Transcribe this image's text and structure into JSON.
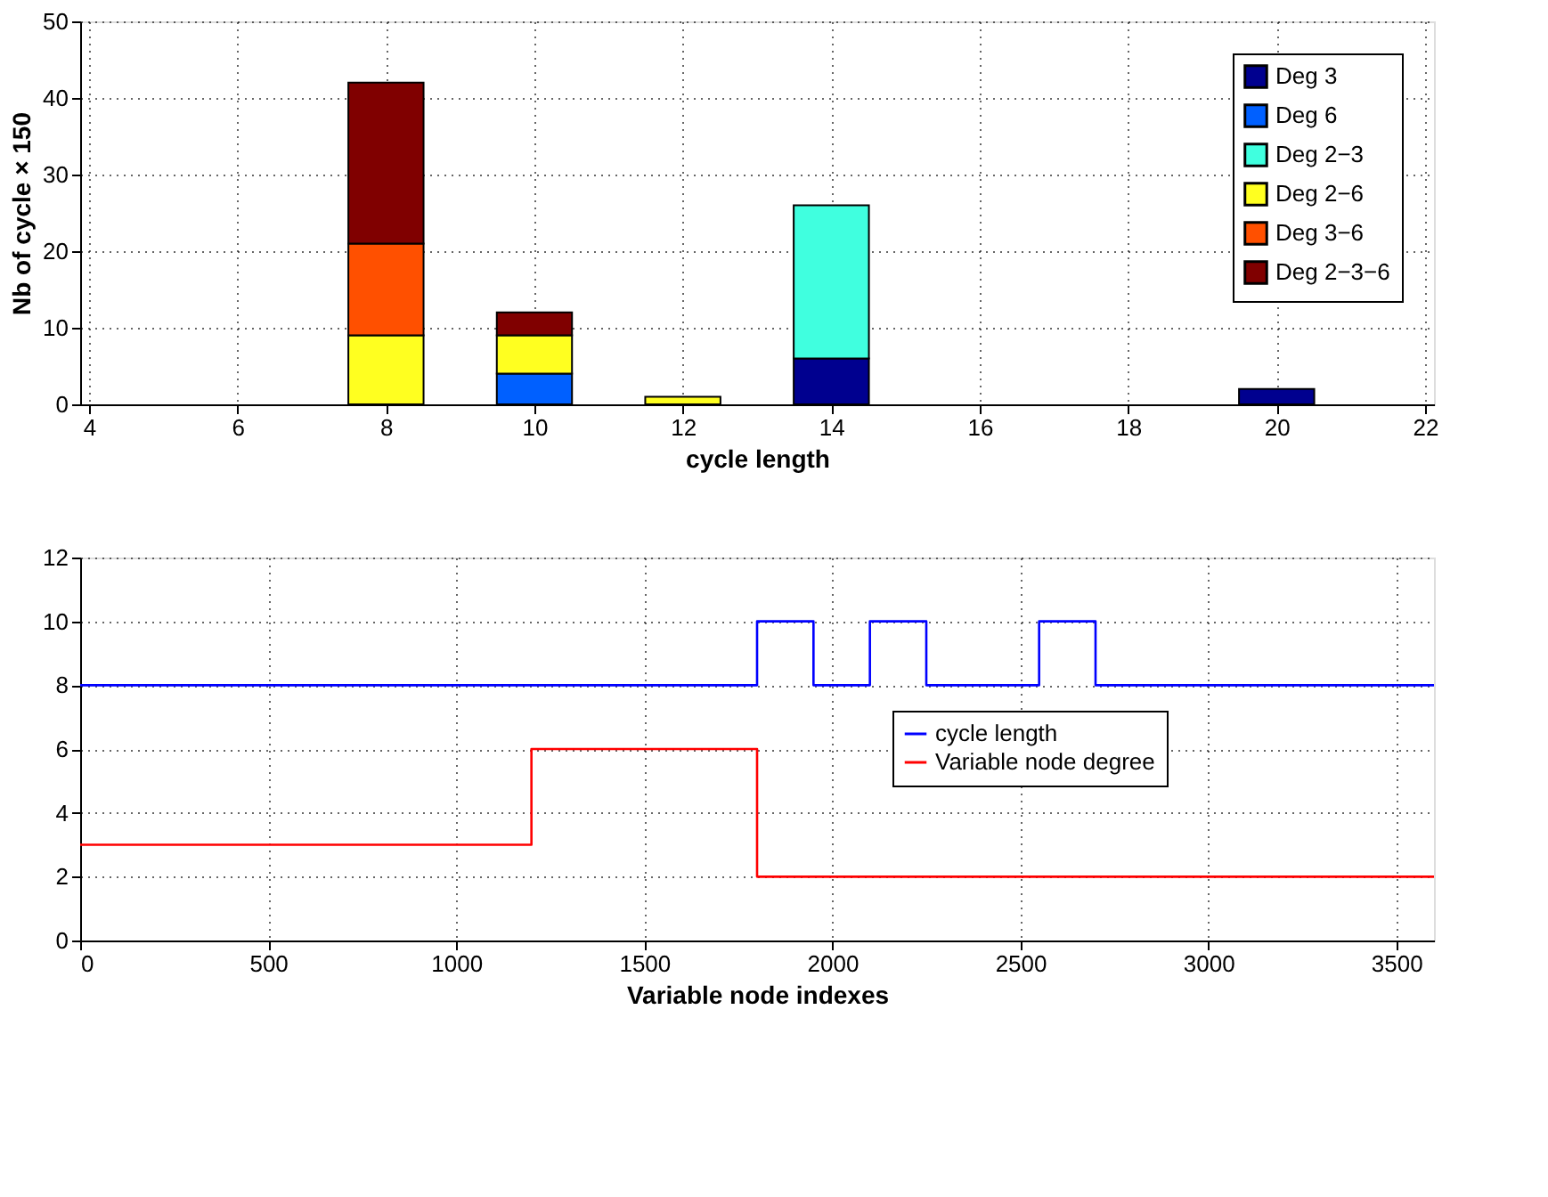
{
  "chart_data": [
    {
      "type": "bar",
      "stacked": true,
      "xlabel": "cycle length",
      "ylabel": "Nb of cycle × 150",
      "x": [
        8,
        10,
        12,
        14,
        20
      ],
      "xlim": [
        4,
        22
      ],
      "xticks": [
        4,
        6,
        8,
        10,
        12,
        14,
        16,
        18,
        20,
        22
      ],
      "ylim": [
        0,
        50
      ],
      "yticks": [
        0,
        10,
        20,
        30,
        40,
        50
      ],
      "grid": true,
      "legend": "top right",
      "series": [
        {
          "name": "Deg 3",
          "color": "#00008f",
          "values": [
            null,
            null,
            null,
            6,
            2
          ]
        },
        {
          "name": "Deg 6",
          "color": "#0060ff",
          "values": [
            null,
            4,
            null,
            null,
            null
          ]
        },
        {
          "name": "Deg 2−3",
          "color": "#40ffdf",
          "values": [
            null,
            null,
            null,
            20,
            null
          ]
        },
        {
          "name": "Deg 2−6",
          "color": "#ffff20",
          "values": [
            9,
            5,
            1,
            null,
            null
          ]
        },
        {
          "name": "Deg 3−6",
          "color": "#ff5000",
          "values": [
            12,
            null,
            null,
            null,
            null
          ]
        },
        {
          "name": "Deg 2−3−6",
          "color": "#800000",
          "values": [
            21,
            3,
            null,
            null,
            null
          ]
        }
      ]
    },
    {
      "type": "step",
      "xlabel": "Variable node indexes",
      "xlim": [
        0,
        3600
      ],
      "xticks": [
        0,
        500,
        1000,
        1500,
        2000,
        2500,
        3000,
        3500
      ],
      "ylim": [
        0,
        12
      ],
      "yticks": [
        0,
        2,
        4,
        6,
        8,
        10,
        12
      ],
      "grid": true,
      "legend": "right",
      "line_style": "solid",
      "series": [
        {
          "name": "cycle length",
          "color": "#0000ff",
          "x": [
            0,
            1800,
            1950,
            2100,
            2250,
            2550,
            2700,
            3600
          ],
          "values": [
            8,
            10,
            8,
            10,
            8,
            10,
            8,
            8
          ]
        },
        {
          "name": "Variable node degree",
          "color": "#ff0000",
          "x": [
            0,
            1200,
            1800,
            3600
          ],
          "values": [
            3,
            6,
            2,
            2
          ]
        }
      ]
    }
  ]
}
